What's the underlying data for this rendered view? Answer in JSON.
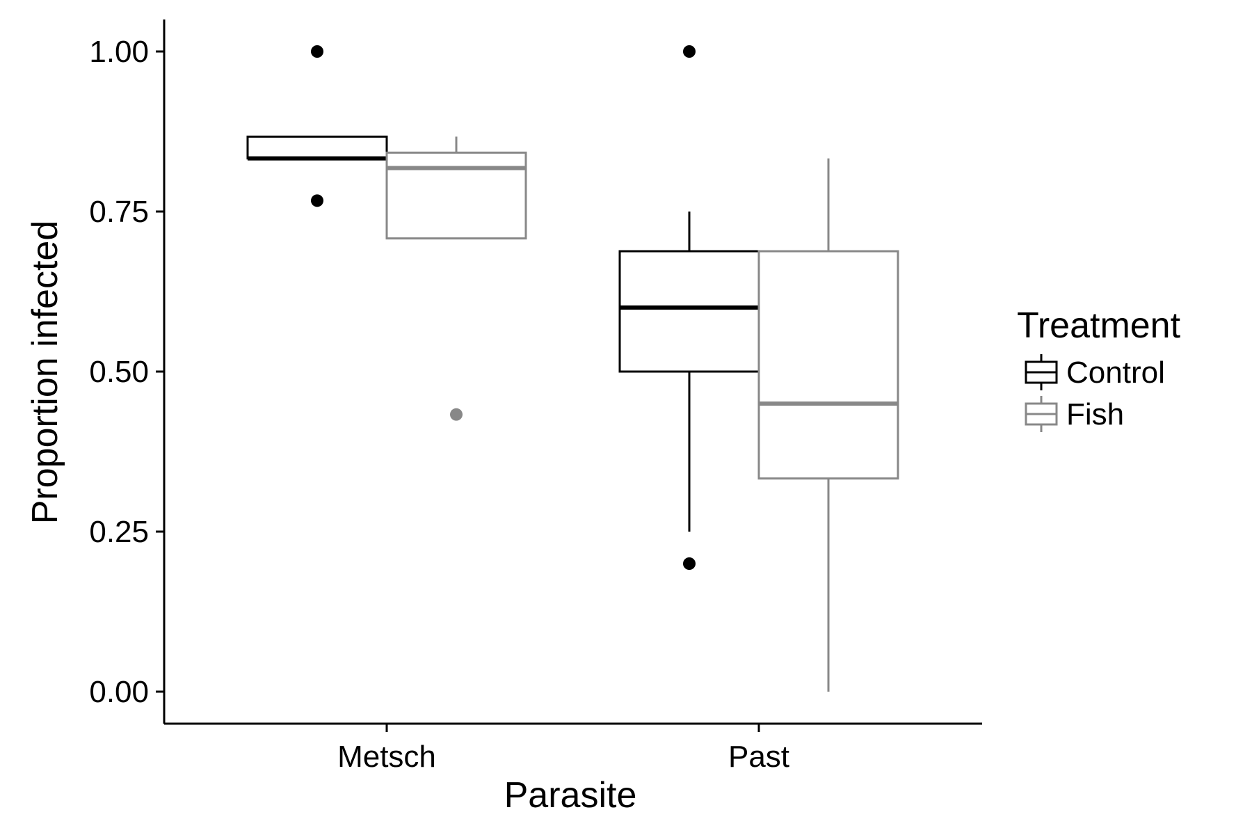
{
  "chart_data": {
    "type": "box",
    "xlabel": "Parasite",
    "ylabel": "Proportion infected",
    "categories": [
      "Metsch",
      "Past"
    ],
    "ylim": [
      -0.05,
      1.05
    ],
    "yticks": [
      0.0,
      0.25,
      0.5,
      0.75,
      1.0
    ],
    "ytick_labels": [
      "0.00",
      "0.25",
      "0.50",
      "0.75",
      "1.00"
    ],
    "grid": false,
    "legend": {
      "title": "Treatment",
      "position": "right",
      "entries": [
        "Control",
        "Fish"
      ]
    },
    "series": [
      {
        "name": "Control",
        "color": "#000000",
        "boxes": [
          {
            "category": "Metsch",
            "q1": 0.833,
            "median": 0.833,
            "q3": 0.867,
            "whisker_low": 0.833,
            "whisker_high": 0.867,
            "outliers": [
              1.0,
              0.767
            ]
          },
          {
            "category": "Past",
            "q1": 0.5,
            "median": 0.6,
            "q3": 0.688,
            "whisker_low": 0.25,
            "whisker_high": 0.75,
            "outliers": [
              1.0,
              0.2
            ]
          }
        ]
      },
      {
        "name": "Fish",
        "color": "#888888",
        "boxes": [
          {
            "category": "Metsch",
            "q1": 0.708,
            "median": 0.818,
            "q3": 0.842,
            "whisker_low": 0.708,
            "whisker_high": 0.867,
            "outliers": [
              0.433
            ]
          },
          {
            "category": "Past",
            "q1": 0.333,
            "median": 0.45,
            "q3": 0.688,
            "whisker_low": 0.0,
            "whisker_high": 0.833,
            "outliers": []
          }
        ]
      }
    ]
  }
}
